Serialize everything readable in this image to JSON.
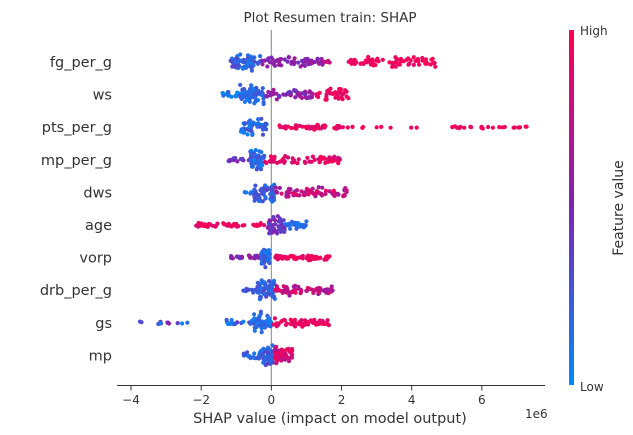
{
  "chart_data": {
    "type": "scatter",
    "subtype": "shap-beeswarm-summary",
    "title": "Plot Resumen train: SHAP",
    "xlabel": "SHAP value (impact on model output)",
    "x_offset_text": "1e6",
    "xlim": [
      -4.4,
      7.8
    ],
    "x_ticks": [
      -4,
      -2,
      0,
      2,
      4,
      6
    ],
    "x_tick_labels": [
      "−4",
      "−2",
      "0",
      "2",
      "4",
      "6"
    ],
    "grid": false,
    "colorbar": {
      "label": "Feature value",
      "high_label": "High",
      "low_label": "Low",
      "low_color": "#008bfb",
      "mid_color": "#7c25b6",
      "high_color": "#ff0052"
    },
    "zero_line_color": "#999999",
    "features": [
      {
        "name": "fg_per_g",
        "clusters": [
          {
            "lo": -1.2,
            "hi": -0.3,
            "n": 60,
            "spread": 0.85,
            "c0": 0.05,
            "c1": 0.35
          },
          {
            "lo": -0.3,
            "hi": 1.5,
            "n": 60,
            "spread": 0.45,
            "c0": 0.45,
            "c1": 0.65
          },
          {
            "lo": 1.5,
            "hi": 1.7,
            "n": 4,
            "spread": 0.1,
            "c0": 0.75,
            "c1": 0.8
          },
          {
            "lo": 2.2,
            "hi": 4.7,
            "n": 70,
            "spread": 0.45,
            "c0": 0.9,
            "c1": 1.0
          }
        ]
      },
      {
        "name": "ws",
        "clusters": [
          {
            "lo": -1.4,
            "hi": -0.5,
            "n": 25,
            "spread": 0.35,
            "c0": 0.0,
            "c1": 0.25
          },
          {
            "lo": -0.9,
            "hi": -0.2,
            "n": 60,
            "spread": 0.95,
            "c0": 0.05,
            "c1": 0.3
          },
          {
            "lo": -0.2,
            "hi": 1.2,
            "n": 50,
            "spread": 0.45,
            "c0": 0.4,
            "c1": 0.7
          },
          {
            "lo": 1.2,
            "hi": 2.2,
            "n": 40,
            "spread": 0.6,
            "c0": 0.85,
            "c1": 1.0
          }
        ]
      },
      {
        "name": "pts_per_g",
        "clusters": [
          {
            "lo": -0.9,
            "hi": -0.1,
            "n": 45,
            "spread": 0.8,
            "c0": 0.05,
            "c1": 0.3
          },
          {
            "lo": 0.2,
            "hi": 2.0,
            "n": 45,
            "spread": 0.25,
            "c0": 0.8,
            "c1": 1.0
          },
          {
            "lo": 2.0,
            "hi": 4.2,
            "n": 10,
            "spread": 0.08,
            "c0": 0.9,
            "c1": 1.0
          },
          {
            "lo": 5.0,
            "hi": 7.3,
            "n": 24,
            "spread": 0.12,
            "c0": 0.9,
            "c1": 1.0
          }
        ]
      },
      {
        "name": "mp_per_g",
        "clusters": [
          {
            "lo": -1.3,
            "hi": -0.4,
            "n": 20,
            "spread": 0.25,
            "c0": 0.35,
            "c1": 0.6
          },
          {
            "lo": -0.6,
            "hi": -0.2,
            "n": 55,
            "spread": 0.95,
            "c0": 0.05,
            "c1": 0.3
          },
          {
            "lo": -0.2,
            "hi": 2.0,
            "n": 60,
            "spread": 0.4,
            "c0": 0.8,
            "c1": 1.0
          }
        ]
      },
      {
        "name": "dws",
        "clusters": [
          {
            "lo": -1.0,
            "hi": -0.5,
            "n": 6,
            "spread": 0.15,
            "c0": 0.05,
            "c1": 0.2
          },
          {
            "lo": -0.5,
            "hi": 0.1,
            "n": 60,
            "spread": 0.95,
            "c0": 0.1,
            "c1": 0.35
          },
          {
            "lo": 0.1,
            "hi": 2.2,
            "n": 65,
            "spread": 0.5,
            "c0": 0.6,
            "c1": 0.95
          }
        ]
      },
      {
        "name": "age",
        "clusters": [
          {
            "lo": -2.2,
            "hi": -0.1,
            "n": 45,
            "spread": 0.2,
            "c0": 0.85,
            "c1": 1.0
          },
          {
            "lo": -0.1,
            "hi": 0.4,
            "n": 45,
            "spread": 0.9,
            "c0": 0.3,
            "c1": 0.6
          },
          {
            "lo": 0.4,
            "hi": 1.0,
            "n": 25,
            "spread": 0.35,
            "c0": 0.05,
            "c1": 0.2
          }
        ]
      },
      {
        "name": "vorp",
        "clusters": [
          {
            "lo": -1.2,
            "hi": -0.3,
            "n": 22,
            "spread": 0.2,
            "c0": 0.4,
            "c1": 0.65
          },
          {
            "lo": -0.3,
            "hi": -0.05,
            "n": 45,
            "spread": 0.95,
            "c0": 0.05,
            "c1": 0.3
          },
          {
            "lo": 0.1,
            "hi": 1.7,
            "n": 60,
            "spread": 0.25,
            "c0": 0.85,
            "c1": 1.0
          }
        ]
      },
      {
        "name": "drb_per_g",
        "clusters": [
          {
            "lo": -0.8,
            "hi": -0.4,
            "n": 10,
            "spread": 0.3,
            "c0": 0.15,
            "c1": 0.35
          },
          {
            "lo": -0.4,
            "hi": 0.1,
            "n": 60,
            "spread": 0.95,
            "c0": 0.1,
            "c1": 0.35
          },
          {
            "lo": 0.1,
            "hi": 1.8,
            "n": 60,
            "spread": 0.5,
            "c0": 0.6,
            "c1": 0.95
          }
        ]
      },
      {
        "name": "gs",
        "clusters": [
          {
            "lo": -3.9,
            "hi": -2.1,
            "n": 12,
            "spread": 0.12,
            "c0": 0.0,
            "c1": 0.6
          },
          {
            "lo": -1.3,
            "hi": -0.3,
            "n": 22,
            "spread": 0.25,
            "c0": 0.0,
            "c1": 0.5
          },
          {
            "lo": -0.5,
            "hi": 0.0,
            "n": 45,
            "spread": 0.95,
            "c0": 0.05,
            "c1": 0.25
          },
          {
            "lo": 0.0,
            "hi": 1.7,
            "n": 55,
            "spread": 0.4,
            "c0": 0.85,
            "c1": 1.0
          }
        ]
      },
      {
        "name": "mp",
        "clusters": [
          {
            "lo": -0.8,
            "hi": -0.2,
            "n": 25,
            "spread": 0.5,
            "c0": 0.05,
            "c1": 0.3
          },
          {
            "lo": -0.3,
            "hi": 0.1,
            "n": 50,
            "spread": 0.95,
            "c0": 0.1,
            "c1": 0.35
          },
          {
            "lo": 0.1,
            "hi": 0.6,
            "n": 55,
            "spread": 0.75,
            "c0": 0.7,
            "c1": 1.0
          }
        ]
      }
    ]
  }
}
